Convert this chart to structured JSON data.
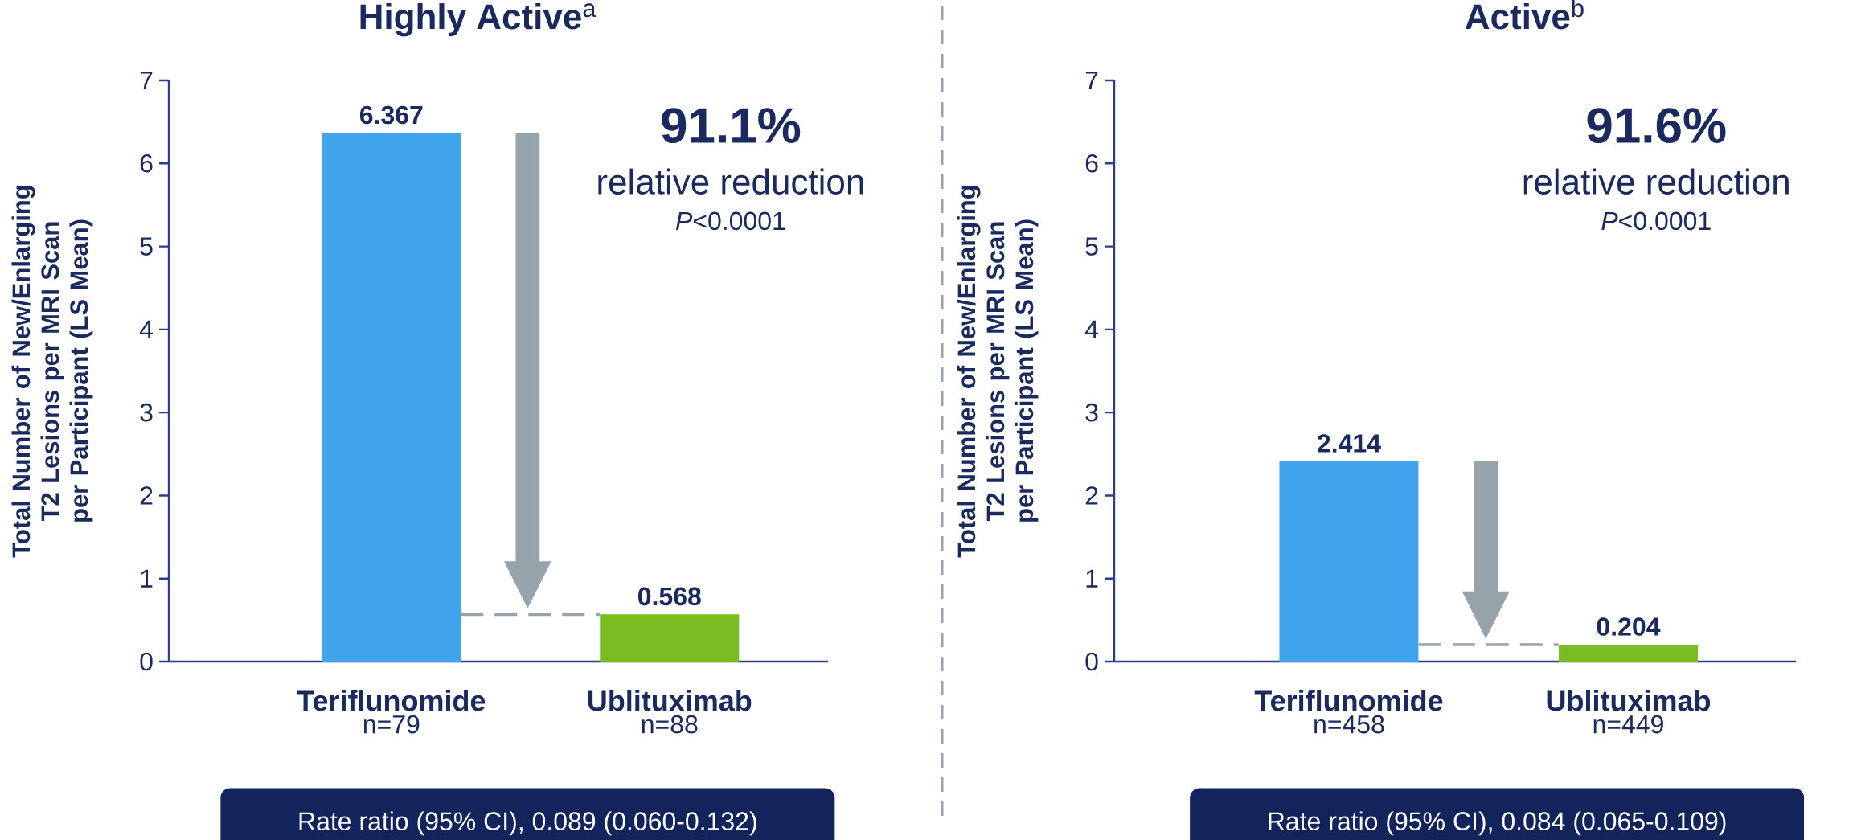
{
  "chart_data": [
    {
      "type": "bar",
      "title": "**Highly Active**$^{a}$",
      "ylabel": "Total Number of New/Enlarging T2 Lesions per MRI Scan per Participant (LS Mean)",
      "categories": [
        "Teriflunomide",
        "Ublituximab"
      ],
      "values": [
        6.367,
        0.568
      ],
      "colors": [
        "#41a5ee",
        "#78bc21"
      ],
      "ylim": [
        0,
        7
      ],
      "yticks": [
        0,
        1,
        2,
        3,
        4,
        5,
        6,
        7
      ],
      "data_labels": true,
      "ref_lines": [
        {
          "axis": "y",
          "value": 0.568,
          "color": "#97a3ab",
          "line_style": "dashed"
        }
      ],
      "annotations": [
        "n=79",
        "n=88",
        "**91.1%**",
        "relative reduction",
        "*P*<0.0001",
        "Rate ratio (95% CI), 0.089 (0.060-0.132)"
      ]
    },
    {
      "type": "bar",
      "title": "**Active**$^{b}$",
      "ylabel": "Total Number of New/Enlarging T2 Lesions per MRI Scan per Participant (LS Mean)",
      "categories": [
        "Teriflunomide",
        "Ublituximab"
      ],
      "values": [
        2.414,
        0.204
      ],
      "colors": [
        "#41a5ee",
        "#78bc21"
      ],
      "ylim": [
        0,
        7
      ],
      "yticks": [
        0,
        1,
        2,
        3,
        4,
        5,
        6,
        7
      ],
      "data_labels": true,
      "ref_lines": [
        {
          "axis": "y",
          "value": 0.204,
          "color": "#97a3ab",
          "line_style": "dashed"
        }
      ],
      "annotations": [
        "n=458",
        "n=449",
        "**91.6%**",
        "relative reduction",
        "*P*<0.0001",
        "Rate ratio (95% CI), 0.084 (0.065-0.109)"
      ]
    }
  ]
}
